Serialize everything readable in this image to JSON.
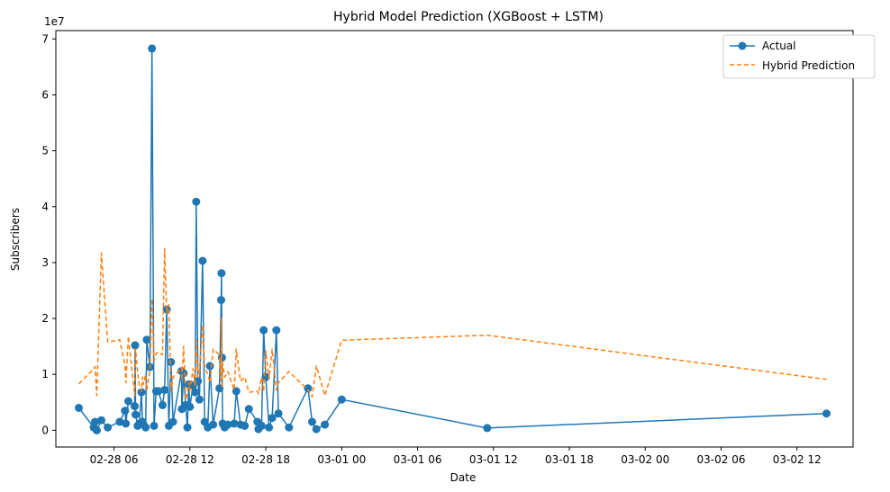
{
  "chart_data": {
    "type": "line",
    "title": "Hybrid Model Prediction (XGBoost + LSTM)",
    "xlabel": "Date",
    "ylabel": "Subscribers",
    "y_offset_label": "1e7",
    "x_ticks": [
      "02-28 06",
      "02-28 12",
      "02-28 18",
      "03-01 00",
      "03-01 06",
      "03-01 12",
      "03-01 18",
      "03-02 00",
      "03-02 06",
      "03-02 12"
    ],
    "y_ticks": [
      "0",
      "1",
      "2",
      "3",
      "4",
      "5",
      "6",
      "7"
    ],
    "y_tick_values": [
      0,
      1,
      2,
      3,
      4,
      5,
      6,
      7
    ],
    "ylim": [
      -0.3,
      7.15
    ],
    "xlim": [
      "02-28 01:24",
      "03-02 16:26"
    ],
    "x_tick_times": [
      "02-28 06:00",
      "02-28 12:00",
      "02-28 18:00",
      "03-01 00:00",
      "03-01 06:00",
      "03-01 12:00",
      "03-01 18:00",
      "03-02 00:00",
      "03-02 06:00",
      "03-02 12:00"
    ],
    "grid": false,
    "legend_position": "top-right",
    "series": [
      {
        "name": "Actual",
        "color": "#1f77b4",
        "style": "solid-with-markers",
        "points": [
          [
            "02-28 03:13",
            0.4
          ],
          [
            "02-28 04:24",
            0.05
          ],
          [
            "02-28 04:30",
            0.15
          ],
          [
            "02-28 04:38",
            0.0
          ],
          [
            "02-28 05:00",
            0.18
          ],
          [
            "02-28 05:30",
            0.05
          ],
          [
            "02-28 06:27",
            0.15
          ],
          [
            "02-28 06:52",
            0.35
          ],
          [
            "02-28 06:56",
            0.12
          ],
          [
            "02-28 07:08",
            0.52
          ],
          [
            "02-28 07:38",
            0.43
          ],
          [
            "02-28 07:40",
            1.52
          ],
          [
            "02-28 07:42",
            0.28
          ],
          [
            "02-28 07:52",
            0.08
          ],
          [
            "02-28 08:00",
            0.12
          ],
          [
            "02-28 08:10",
            0.68
          ],
          [
            "02-28 08:15",
            0.15
          ],
          [
            "02-28 08:20",
            0.1
          ],
          [
            "02-28 08:30",
            0.05
          ],
          [
            "02-28 08:35",
            1.62
          ],
          [
            "02-28 08:50",
            1.13
          ],
          [
            "02-28 09:00",
            6.83
          ],
          [
            "02-28 09:10",
            0.08
          ],
          [
            "02-28 09:20",
            0.7
          ],
          [
            "02-28 09:30",
            0.7
          ],
          [
            "02-28 09:50",
            0.45
          ],
          [
            "02-28 10:00",
            0.72
          ],
          [
            "02-28 10:10",
            2.16
          ],
          [
            "02-28 10:20",
            0.08
          ],
          [
            "02-28 10:30",
            1.22
          ],
          [
            "02-28 10:40",
            0.15
          ],
          [
            "02-28 11:20",
            1.06
          ],
          [
            "02-28 11:22",
            0.38
          ],
          [
            "02-28 11:30",
            1.02
          ],
          [
            "02-28 11:40",
            0.45
          ],
          [
            "02-28 11:48",
            0.05
          ],
          [
            "02-28 11:55",
            0.82
          ],
          [
            "02-28 12:00",
            0.42
          ],
          [
            "02-28 12:15",
            0.8
          ],
          [
            "02-28 12:25",
            0.68
          ],
          [
            "02-28 12:30",
            4.09
          ],
          [
            "02-28 12:38",
            0.88
          ],
          [
            "02-28 12:45",
            0.55
          ],
          [
            "02-28 13:00",
            3.03
          ],
          [
            "02-28 13:10",
            0.15
          ],
          [
            "02-28 13:25",
            0.05
          ],
          [
            "02-28 13:35",
            1.15
          ],
          [
            "02-28 13:50",
            0.1
          ],
          [
            "02-28 14:20",
            0.75
          ],
          [
            "02-28 14:28",
            2.33
          ],
          [
            "02-28 14:30",
            2.81
          ],
          [
            "02-28 14:32",
            1.3
          ],
          [
            "02-28 14:35",
            0.12
          ],
          [
            "02-28 14:45",
            0.05
          ],
          [
            "02-28 15:00",
            0.1
          ],
          [
            "02-28 15:30",
            0.12
          ],
          [
            "02-28 15:40",
            0.7
          ],
          [
            "02-28 16:00",
            0.1
          ],
          [
            "02-28 16:20",
            0.08
          ],
          [
            "02-28 16:40",
            0.38
          ],
          [
            "02-28 17:20",
            0.15
          ],
          [
            "02-28 17:25",
            0.02
          ],
          [
            "02-28 17:40",
            0.08
          ],
          [
            "02-28 17:50",
            1.79
          ],
          [
            "02-28 18:00",
            0.95
          ],
          [
            "02-28 18:15",
            0.05
          ],
          [
            "02-28 18:30",
            0.22
          ],
          [
            "02-28 18:50",
            1.79
          ],
          [
            "02-28 19:00",
            0.3
          ],
          [
            "02-28 19:50",
            0.05
          ],
          [
            "02-28 21:20",
            0.75
          ],
          [
            "02-28 21:40",
            0.15
          ],
          [
            "02-28 22:00",
            0.02
          ],
          [
            "02-28 22:40",
            0.1
          ],
          [
            "03-01 00:00",
            0.55
          ],
          [
            "03-01 11:30",
            0.04
          ],
          [
            "03-02 14:20",
            0.3
          ]
        ]
      },
      {
        "name": "Hybrid Prediction",
        "color": "#ff7f0e",
        "style": "dashed",
        "points": [
          [
            "02-28 03:13",
            0.83
          ],
          [
            "02-28 04:24",
            1.1
          ],
          [
            "02-28 04:30",
            1.14
          ],
          [
            "02-28 04:38",
            0.62
          ],
          [
            "02-28 05:00",
            3.17
          ],
          [
            "02-28 05:30",
            1.58
          ],
          [
            "02-28 06:27",
            1.62
          ],
          [
            "02-28 06:52",
            1.15
          ],
          [
            "02-28 06:56",
            0.85
          ],
          [
            "02-28 07:08",
            1.68
          ],
          [
            "02-28 07:38",
            0.62
          ],
          [
            "02-28 07:40",
            0.85
          ],
          [
            "02-28 07:42",
            1.45
          ],
          [
            "02-28 07:52",
            1.02
          ],
          [
            "02-28 08:00",
            0.78
          ],
          [
            "02-28 08:10",
            0.7
          ],
          [
            "02-28 08:15",
            0.95
          ],
          [
            "02-28 08:20",
            0.82
          ],
          [
            "02-28 08:30",
            1.0
          ],
          [
            "02-28 08:35",
            0.72
          ],
          [
            "02-28 08:50",
            1.05
          ],
          [
            "02-28 09:00",
            2.35
          ],
          [
            "02-28 09:10",
            1.25
          ],
          [
            "02-28 09:20",
            1.38
          ],
          [
            "02-28 09:30",
            1.4
          ],
          [
            "02-28 09:50",
            1.35
          ],
          [
            "02-28 10:00",
            3.25
          ],
          [
            "02-28 10:10",
            2.1
          ],
          [
            "02-28 10:20",
            2.25
          ],
          [
            "02-28 10:30",
            0.7
          ],
          [
            "02-28 10:40",
            0.95
          ],
          [
            "02-28 11:20",
            1.12
          ],
          [
            "02-28 11:22",
            0.9
          ],
          [
            "02-28 11:30",
            1.5
          ],
          [
            "02-28 11:40",
            0.55
          ],
          [
            "02-28 11:48",
            0.65
          ],
          [
            "02-28 11:55",
            0.85
          ],
          [
            "02-28 12:00",
            0.72
          ],
          [
            "02-28 12:15",
            1.1
          ],
          [
            "02-28 12:25",
            0.78
          ],
          [
            "02-28 12:30",
            1.62
          ],
          [
            "02-28 12:38",
            0.95
          ],
          [
            "02-28 12:45",
            1.05
          ],
          [
            "02-28 13:00",
            1.88
          ],
          [
            "02-28 13:10",
            1.12
          ],
          [
            "02-28 13:25",
            1.0
          ],
          [
            "02-28 13:35",
            0.85
          ],
          [
            "02-28 13:50",
            1.45
          ],
          [
            "02-28 14:20",
            1.35
          ],
          [
            "02-28 14:28",
            0.88
          ],
          [
            "02-28 14:30",
            2.0
          ],
          [
            "02-28 14:32",
            0.75
          ],
          [
            "02-28 14:35",
            1.2
          ],
          [
            "02-28 14:45",
            0.95
          ],
          [
            "02-28 15:00",
            1.05
          ],
          [
            "02-28 15:30",
            0.72
          ],
          [
            "02-28 15:40",
            1.45
          ],
          [
            "02-28 16:00",
            0.88
          ],
          [
            "02-28 16:20",
            0.95
          ],
          [
            "02-28 16:40",
            0.68
          ],
          [
            "02-28 17:20",
            0.7
          ],
          [
            "02-28 17:25",
            0.65
          ],
          [
            "02-28 17:40",
            0.95
          ],
          [
            "02-28 17:50",
            0.7
          ],
          [
            "02-28 18:00",
            1.42
          ],
          [
            "02-28 18:15",
            0.92
          ],
          [
            "02-28 18:30",
            1.45
          ],
          [
            "02-28 18:50",
            0.72
          ],
          [
            "02-28 19:00",
            0.85
          ],
          [
            "02-28 19:50",
            1.05
          ],
          [
            "02-28 21:20",
            0.72
          ],
          [
            "02-28 21:40",
            0.6
          ],
          [
            "02-28 22:00",
            1.15
          ],
          [
            "02-28 22:40",
            0.62
          ],
          [
            "03-01 00:00",
            1.61
          ],
          [
            "03-01 11:30",
            1.7
          ],
          [
            "03-02 14:20",
            0.91
          ]
        ]
      }
    ]
  }
}
